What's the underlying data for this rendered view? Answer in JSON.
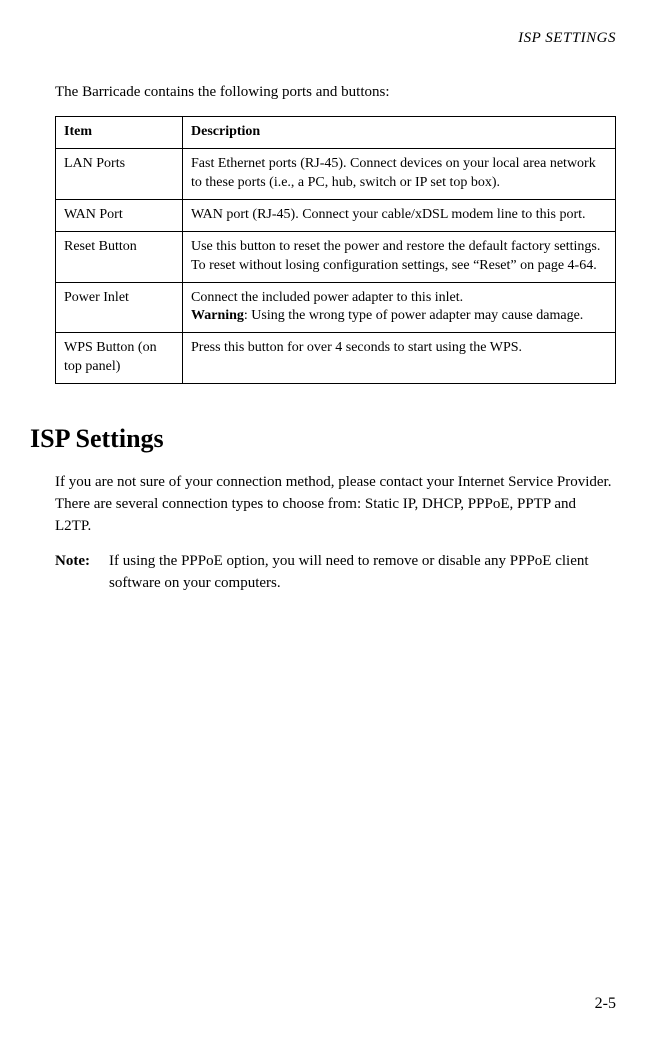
{
  "running_head": "ISP SETTINGS",
  "intro_text": "The Barricade contains the following ports and buttons:",
  "table": {
    "headers": {
      "item": "Item",
      "desc": "Description"
    },
    "rows": [
      {
        "item": "LAN Ports",
        "desc": "Fast Ethernet ports (RJ-45). Connect devices on your local area network to these ports (i.e., a PC, hub, switch or IP set top box)."
      },
      {
        "item": "WAN Port",
        "desc": "WAN port (RJ-45). Connect your cable/xDSL modem line to this port."
      },
      {
        "item": "Reset Button",
        "desc": "Use this button to reset the power and restore the default factory settings. To reset without losing configuration settings, see “Reset” on page 4-64."
      },
      {
        "item": "Power Inlet",
        "desc_line1": "Connect the included power adapter to this inlet.",
        "warn_label": "Warning",
        "warn_text": ": Using the wrong type of power adapter may cause damage."
      },
      {
        "item": "WPS Button (on top panel)",
        "desc": "Press this button for over 4 seconds to start using the WPS."
      }
    ]
  },
  "heading": "ISP Settings",
  "para1": "If you are not sure of your connection method, please contact your Internet Service Provider. There are several connection types to choose from: Static IP, DHCP, PPPoE, PPTP and L2TP.",
  "note_label": "Note:",
  "note_text": "If using the PPPoE option, you will need to remove or disable any PPPoE client software on your computers.",
  "page_number": "2-5",
  "colors": {
    "text": "#000000",
    "border": "#000000",
    "background": "#ffffff"
  },
  "fonts": {
    "body_size_pt": 11,
    "heading_size_pt": 20,
    "family": "Garamond / serif"
  }
}
